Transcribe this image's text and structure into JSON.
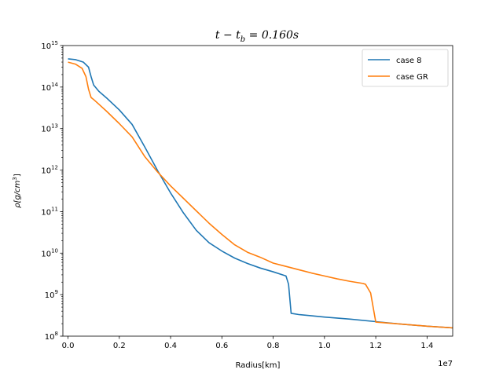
{
  "chart_data": {
    "type": "line",
    "title_main": "t − t",
    "title_sub": "b",
    "title_tail": " = 0.160s",
    "xlabel": "Radius[km]",
    "ylabel_main": "ρ[g/cm",
    "ylabel_sup": "3",
    "ylabel_tail": "]",
    "x_offset_text": "1e7",
    "xlim": [
      -0.02,
      1.5
    ],
    "ylim_log10": [
      8,
      15
    ],
    "yscale": "log",
    "grid": false,
    "legend_position": "upper right",
    "x_ticks": [
      "0.0",
      "0.2",
      "0.4",
      "0.6",
      "0.8",
      "1.0",
      "1.2",
      "1.4"
    ],
    "x_tick_values": [
      0.0,
      0.2,
      0.4,
      0.6,
      0.8,
      1.0,
      1.2,
      1.4
    ],
    "y_tick_base": "10",
    "y_tick_exponents": [
      "8",
      "9",
      "10",
      "11",
      "12",
      "13",
      "14",
      "15"
    ],
    "y_tick_values": [
      8,
      9,
      10,
      11,
      12,
      13,
      14,
      15
    ],
    "series": [
      {
        "name": "case 8",
        "color": "#1f77b4",
        "x": [
          0.0,
          0.03,
          0.06,
          0.08,
          0.09,
          0.1,
          0.12,
          0.15,
          0.2,
          0.25,
          0.3,
          0.35,
          0.4,
          0.45,
          0.5,
          0.55,
          0.6,
          0.65,
          0.7,
          0.75,
          0.8,
          0.85,
          0.86,
          0.87,
          0.88,
          0.9,
          0.95,
          1.0,
          1.1,
          1.2,
          1.3,
          1.4,
          1.5
        ],
        "y": [
          14.68,
          14.66,
          14.6,
          14.48,
          14.25,
          14.05,
          13.9,
          13.74,
          13.45,
          13.1,
          12.55,
          11.98,
          11.45,
          10.97,
          10.55,
          10.25,
          10.05,
          9.88,
          9.75,
          9.64,
          9.55,
          9.45,
          9.25,
          8.55,
          8.54,
          8.52,
          8.49,
          8.46,
          8.41,
          8.35,
          8.29,
          8.24,
          8.2
        ]
      },
      {
        "name": "case GR",
        "color": "#ff7f0e",
        "x": [
          0.0,
          0.03,
          0.055,
          0.07,
          0.08,
          0.09,
          0.1,
          0.15,
          0.2,
          0.25,
          0.3,
          0.35,
          0.4,
          0.45,
          0.5,
          0.55,
          0.6,
          0.65,
          0.7,
          0.75,
          0.8,
          0.85,
          0.9,
          0.95,
          1.0,
          1.05,
          1.1,
          1.15,
          1.16,
          1.18,
          1.2,
          1.3,
          1.4,
          1.5
        ],
        "y": [
          14.6,
          14.55,
          14.45,
          14.25,
          13.95,
          13.75,
          13.7,
          13.42,
          13.12,
          12.8,
          12.32,
          11.95,
          11.62,
          11.32,
          11.02,
          10.72,
          10.45,
          10.2,
          10.02,
          9.9,
          9.76,
          9.68,
          9.6,
          9.52,
          9.45,
          9.38,
          9.32,
          9.27,
          9.25,
          9.04,
          8.34,
          8.29,
          8.24,
          8.2
        ]
      }
    ]
  }
}
